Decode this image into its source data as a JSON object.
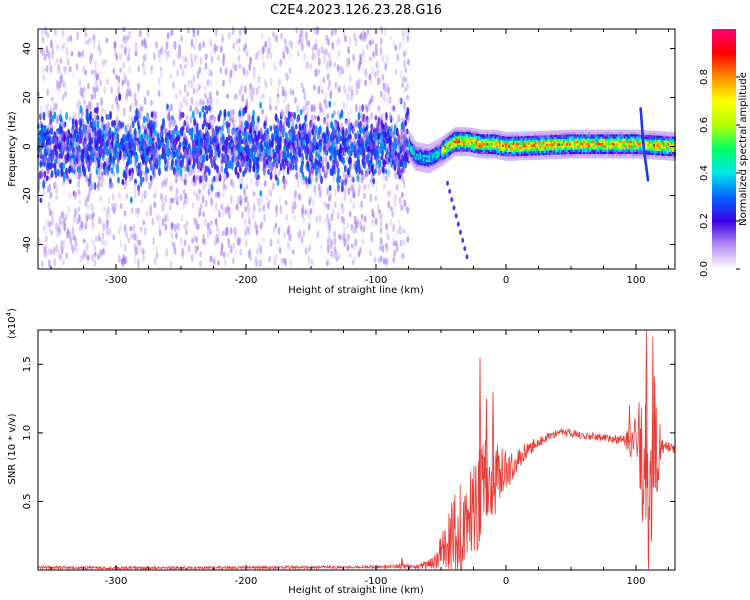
{
  "figure": {
    "title": "C2E4.2023.126.23.28.G16"
  },
  "chart_data": [
    {
      "type": "heatmap",
      "xlabel": "Height of straight line (km)",
      "ylabel": "Frequency (Hz)",
      "xlim": [
        -360,
        130
      ],
      "ylim": [
        -50,
        48
      ],
      "xticks": [
        -300,
        -200,
        -100,
        0,
        100
      ],
      "yticks": [
        -40,
        -20,
        0,
        20,
        40
      ],
      "colorbar": {
        "label": "Normalized spectral amplitude",
        "ticks": [
          "0.0",
          "0.2",
          "0.4",
          "0.6",
          "0.8"
        ],
        "range": [
          0,
          1
        ],
        "colors": [
          "#ffffff",
          "#b48cf0",
          "#3c00e6",
          "#0064ff",
          "#00e6e6",
          "#00ff64",
          "#b4ff00",
          "#ffff00",
          "#ff8c00",
          "#ff0000",
          "#ff0078"
        ]
      },
      "regions": [
        {
          "x_range": [
            -360,
            -75
          ],
          "description": "broadband noise",
          "center_freq": 0,
          "core_halfwidth": 8,
          "noise_halfwidth": 48,
          "core_amplitude": 0.3
        },
        {
          "x_range": [
            -75,
            130
          ],
          "description": "narrow signal band",
          "band_center_points": [
            [
              -75,
              0
            ],
            [
              -70,
              -4
            ],
            [
              -60,
              -5
            ],
            [
              -50,
              -2
            ],
            [
              -40,
              2
            ],
            [
              -30,
              2
            ],
            [
              -20,
              1
            ],
            [
              -10,
              1
            ],
            [
              0,
              0
            ],
            [
              50,
              1
            ],
            [
              100,
              1
            ],
            [
              130,
              0
            ]
          ],
          "band_halfwidth": 2.5,
          "core_amplitude": 0.9
        }
      ],
      "features": [
        {
          "x": 105,
          "freq_range": [
            -13,
            16
          ],
          "description": "vertical spike feature"
        },
        {
          "x_range": [
            -45,
            -30
          ],
          "freq_range": [
            -45,
            -15
          ],
          "description": "faint descending tail"
        }
      ]
    },
    {
      "type": "line",
      "xlabel": "Height of straight line (km)",
      "ylabel": "SNR (10 * v/v)",
      "yscale_label": "(x10",
      "yscale_exponent": "4",
      "yscale_suffix": ")",
      "xlim": [
        -360,
        130
      ],
      "ylim": [
        0,
        1.75
      ],
      "xticks": [
        -300,
        -200,
        -100,
        0,
        100
      ],
      "yticks": [
        0.5,
        1.0,
        1.5
      ],
      "ytick_labels": [
        "0.5",
        "1.0",
        "1.5"
      ],
      "color": "#e83a35",
      "series": [
        {
          "x": [
            -360,
            -300,
            -200,
            -150,
            -100,
            -80,
            -70,
            -55,
            -50,
            -45,
            -40,
            -35,
            -30,
            -25,
            -20,
            -15,
            -10,
            -5,
            0,
            10,
            20,
            30,
            40,
            50,
            60,
            70,
            80,
            90,
            95,
            100,
            105,
            108,
            110,
            113,
            115,
            120,
            125,
            130
          ],
          "y": [
            0.02,
            0.015,
            0.018,
            0.02,
            0.022,
            0.03,
            0.02,
            0.05,
            0.15,
            0.2,
            0.25,
            0.3,
            0.35,
            0.45,
            0.55,
            0.6,
            0.65,
            0.7,
            0.72,
            0.82,
            0.9,
            0.96,
            1.0,
            1.0,
            0.98,
            0.97,
            0.96,
            0.94,
            0.93,
            0.92,
            0.95,
            0.6,
            0.2,
            0.6,
            0.95,
            0.92,
            0.9,
            0.88
          ],
          "noise_amplitude": [
            0.01,
            0.01,
            0.01,
            0.01,
            0.01,
            0.02,
            0.01,
            0.05,
            0.12,
            0.2,
            0.3,
            0.35,
            0.3,
            0.35,
            0.4,
            0.35,
            0.3,
            0.2,
            0.15,
            0.08,
            0.05,
            0.03,
            0.03,
            0.03,
            0.03,
            0.03,
            0.03,
            0.04,
            0.1,
            0.25,
            0.6,
            0.6,
            0.5,
            0.6,
            0.6,
            0.08,
            0.04,
            0.03
          ],
          "spikes": [
            [
              -80,
              0.09
            ],
            [
              -20,
              1.55
            ],
            [
              -15,
              1.25
            ],
            [
              -10,
              1.3
            ],
            [
              95,
              1.2
            ],
            [
              108,
              1.75
            ],
            [
              113,
              1.7
            ]
          ]
        }
      ]
    }
  ]
}
